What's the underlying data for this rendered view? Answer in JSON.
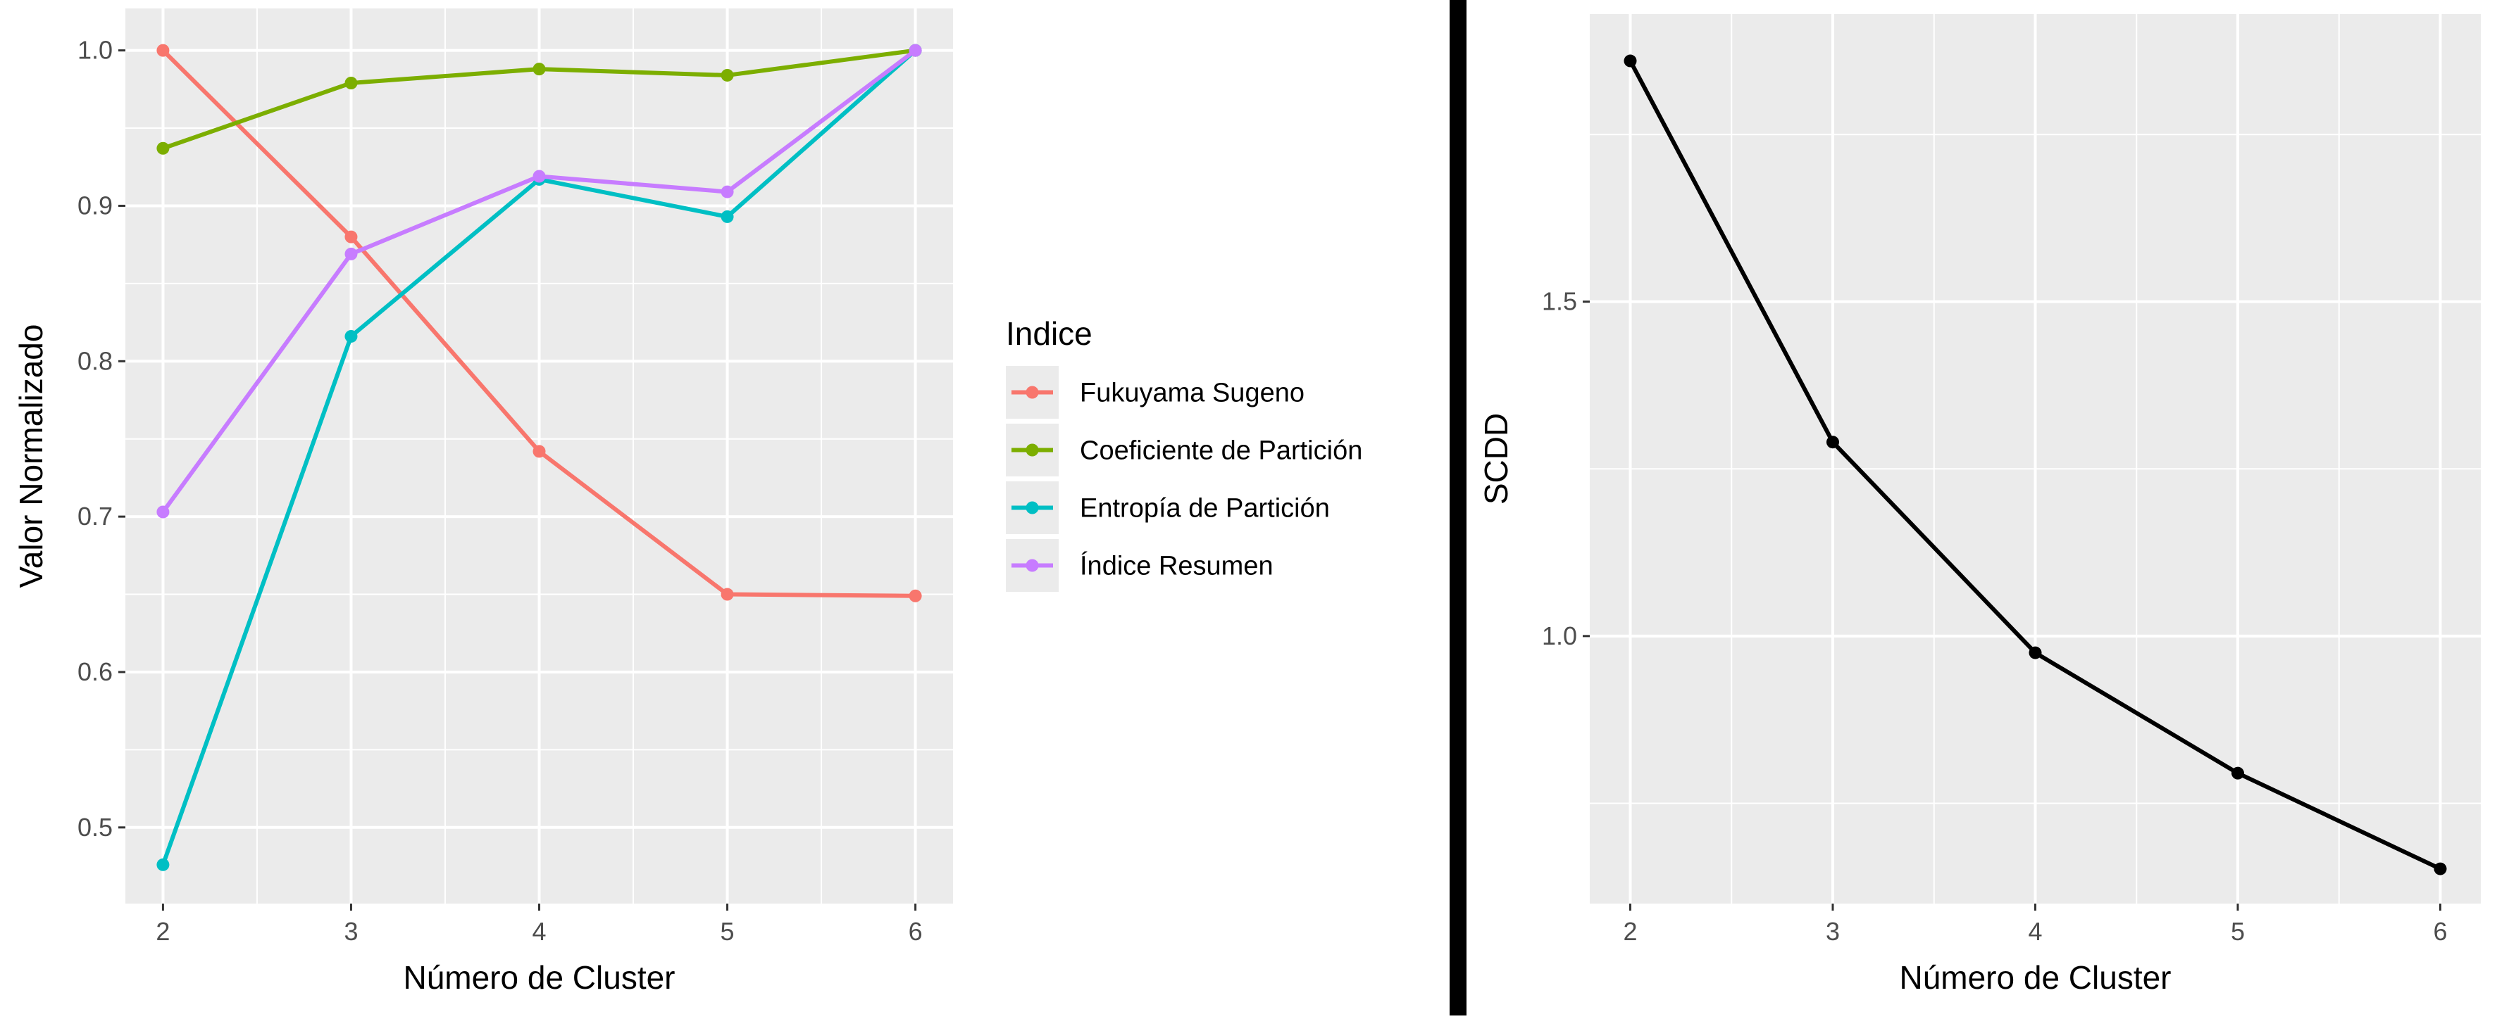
{
  "chart_data": [
    {
      "type": "line",
      "xlabel": "Número de Cluster",
      "ylabel": "Valor Normalizado",
      "x": [
        2,
        3,
        4,
        5,
        6
      ],
      "xlim": [
        1.8,
        6.2
      ],
      "ylim": [
        0.451,
        1.027
      ],
      "xticks": [
        "2",
        "3",
        "4",
        "5",
        "6"
      ],
      "yticks": [
        0.5,
        0.6,
        0.7,
        0.8,
        0.9,
        1.0
      ],
      "ytick_labels": [
        "0.5",
        "0.6",
        "0.7",
        "0.8",
        "0.9",
        "1.0"
      ],
      "grid": true,
      "legend": {
        "title": "Indice",
        "placement": "right"
      },
      "series": [
        {
          "name": "Fukuyama Sugeno",
          "color": "#F8766D",
          "values": [
            1.0,
            0.88,
            0.742,
            0.65,
            0.649
          ]
        },
        {
          "name": "Coeficiente de Partición",
          "color": "#7CAE00",
          "values": [
            0.937,
            0.979,
            0.988,
            0.984,
            1.0
          ]
        },
        {
          "name": "Entropía de Partición",
          "color": "#00BFC4",
          "values": [
            0.476,
            0.816,
            0.917,
            0.893,
            1.0
          ]
        },
        {
          "name": "Índice Resumen",
          "color": "#C77CFF",
          "values": [
            0.703,
            0.869,
            0.919,
            0.909,
            1.0
          ]
        }
      ]
    },
    {
      "type": "line",
      "xlabel": "Número de Cluster",
      "ylabel": "SCDD",
      "x": [
        2,
        3,
        4,
        5,
        6
      ],
      "xlim": [
        1.8,
        6.2
      ],
      "ylim": [
        0.6,
        1.93
      ],
      "xticks": [
        "2",
        "3",
        "4",
        "5",
        "6"
      ],
      "yticks": [
        1.0,
        1.5
      ],
      "ytick_labels": [
        "1.0",
        "1.5"
      ],
      "grid": true,
      "series": [
        {
          "color": "#000000",
          "values": [
            1.86,
            1.29,
            0.975,
            0.795,
            0.652
          ]
        }
      ]
    }
  ],
  "divider_color": "#000000",
  "panel_background": "#EBEBEB"
}
